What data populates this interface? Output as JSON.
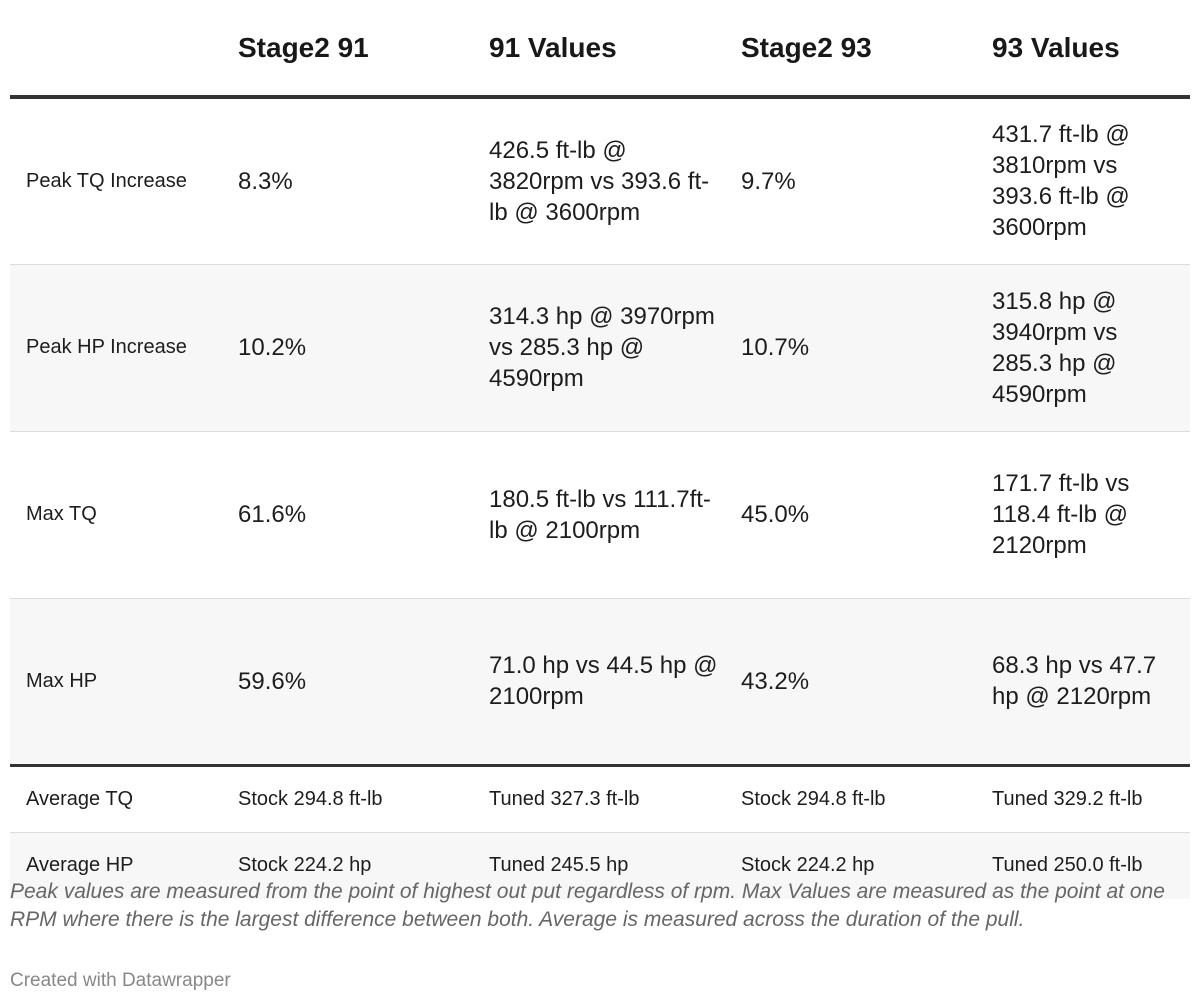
{
  "table": {
    "headers": [
      "",
      "Stage2 91",
      "91 Values",
      "Stage2 93",
      "93 Values"
    ],
    "rows": [
      {
        "label": "Peak TQ Increase",
        "stage2_91": "8.3%",
        "values_91": "426.5 ft-lb @ 3820rpm vs 393.6 ft-lb @ 3600rpm",
        "stage2_93": "9.7%",
        "values_93": "431.7 ft-lb @ 3810rpm vs 393.6 ft-lb @ 3600rpm"
      },
      {
        "label": "Peak HP Increase",
        "stage2_91": "10.2%",
        "values_91": "314.3 hp @ 3970rpm vs 285.3 hp @ 4590rpm",
        "stage2_93": "10.7%",
        "values_93": "315.8 hp @ 3940rpm vs 285.3 hp @ 4590rpm"
      },
      {
        "label": "Max TQ",
        "stage2_91": "61.6%",
        "values_91": "180.5 ft-lb vs 111.7ft-lb @ 2100rpm",
        "stage2_93": "45.0%",
        "values_93": "171.7 ft-lb vs 118.4 ft-lb @ 2120rpm"
      },
      {
        "label": "Max HP",
        "stage2_91": "59.6%",
        "values_91": "71.0 hp vs 44.5 hp @ 2100rpm",
        "stage2_93": "43.2%",
        "values_93": "68.3 hp vs 47.7 hp @ 2120rpm"
      }
    ],
    "averages": [
      {
        "label": "Average TQ",
        "stage2_91": "Stock 294.8 ft-lb",
        "values_91": "Tuned 327.3 ft-lb",
        "stage2_93": "Stock 294.8 ft-lb",
        "values_93": "Tuned 329.2 ft-lb"
      },
      {
        "label": "Average HP",
        "stage2_91": "Stock 224.2 hp",
        "values_91": "Tuned 245.5 hp",
        "stage2_93": "Stock 224.2 hp",
        "values_93": "Tuned 250.0 ft-lb"
      }
    ]
  },
  "notes": "Peak values are measured from the point of highest out put regardless of rpm. Max Values are measured as the point at one RPM where there is the largest difference between both. Average is measured across the duration of the pull.",
  "credit": "Created with Datawrapper"
}
